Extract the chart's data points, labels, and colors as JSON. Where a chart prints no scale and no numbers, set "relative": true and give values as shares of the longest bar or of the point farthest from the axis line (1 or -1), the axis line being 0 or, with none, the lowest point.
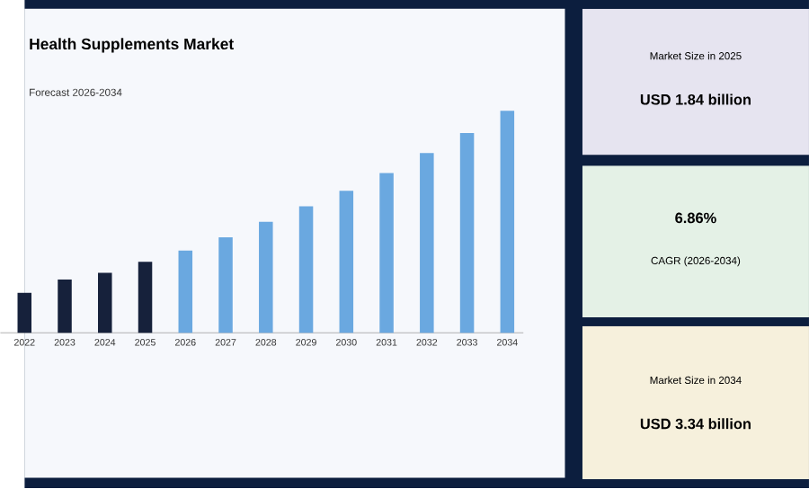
{
  "chart_data": [
    {
      "type": "bar",
      "title": "Health Supplements Market",
      "subtitle": "Forecast 2026-2034",
      "categories": [
        "2022",
        "2023",
        "2024",
        "2025",
        "2026",
        "2027",
        "2028",
        "2029",
        "2030",
        "2031",
        "2032",
        "2033",
        "2034"
      ],
      "values": [
        0.18,
        0.24,
        0.27,
        0.32,
        0.37,
        0.43,
        0.5,
        0.57,
        0.64,
        0.72,
        0.81,
        0.9,
        1
      ],
      "colors": [
        "#16213b",
        "#16213b",
        "#16213b",
        "#16213b",
        "#6aa8e0",
        "#6aa8e0",
        "#6aa8e0",
        "#6aa8e0",
        "#6aa8e0",
        "#6aa8e0",
        "#6aa8e0",
        "#6aa8e0",
        "#6aa8e0"
      ],
      "relative": true
    },
    {
      "type": "other",
      "annotations": [
        "Market Size in 2025",
        "USD 1.84 billion",
        "6.86%",
        "CAGR (2026-2034)",
        "Market Size in 2034",
        "USD 3.34 billion"
      ]
    }
  ]
}
